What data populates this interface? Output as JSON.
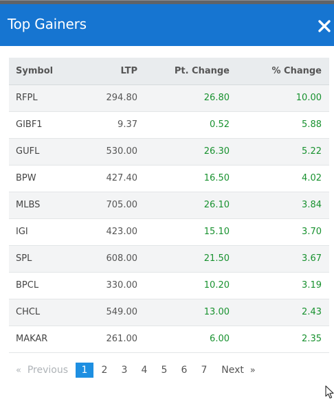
{
  "modal": {
    "title": "Top Gainers",
    "close_icon": "close-icon"
  },
  "table": {
    "columns": [
      "Symbol",
      "LTP",
      "Pt. Change",
      "% Change"
    ],
    "rows": [
      {
        "symbol": "RFPL",
        "ltp": "294.80",
        "pt_change": "26.80",
        "pct_change": "10.00"
      },
      {
        "symbol": "GIBF1",
        "ltp": "9.37",
        "pt_change": "0.52",
        "pct_change": "5.88"
      },
      {
        "symbol": "GUFL",
        "ltp": "530.00",
        "pt_change": "26.30",
        "pct_change": "5.22"
      },
      {
        "symbol": "BPW",
        "ltp": "427.40",
        "pt_change": "16.50",
        "pct_change": "4.02"
      },
      {
        "symbol": "MLBS",
        "ltp": "705.00",
        "pt_change": "26.10",
        "pct_change": "3.84"
      },
      {
        "symbol": "IGI",
        "ltp": "423.00",
        "pt_change": "15.10",
        "pct_change": "3.70"
      },
      {
        "symbol": "SPL",
        "ltp": "608.00",
        "pt_change": "21.50",
        "pct_change": "3.67"
      },
      {
        "symbol": "BPCL",
        "ltp": "330.00",
        "pt_change": "10.20",
        "pct_change": "3.19"
      },
      {
        "symbol": "CHCL",
        "ltp": "549.00",
        "pt_change": "13.00",
        "pct_change": "2.43"
      },
      {
        "symbol": "MAKAR",
        "ltp": "261.00",
        "pt_change": "6.00",
        "pct_change": "2.35"
      }
    ]
  },
  "pagination": {
    "prev_arrow": "«",
    "prev_label": "Previous",
    "pages": [
      "1",
      "2",
      "3",
      "4",
      "5",
      "6",
      "7"
    ],
    "active_page": "1",
    "next_label": "Next",
    "next_arrow": "»"
  },
  "colors": {
    "header_bg": "#1675d1",
    "positive": "#17912e",
    "active_page_bg": "#1e8fe1"
  }
}
